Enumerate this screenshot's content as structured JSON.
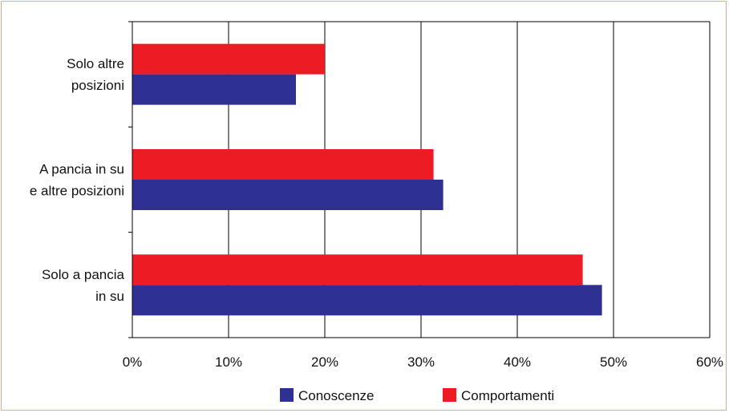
{
  "chart_data": {
    "type": "bar",
    "orientation": "horizontal",
    "categories": [
      [
        "Solo altre",
        "posizioni"
      ],
      [
        "A pancia in su",
        "e altre posizioni"
      ],
      [
        "Solo a pancia",
        "in su"
      ]
    ],
    "series": [
      {
        "name": "Conoscenze",
        "color": "#2e3192",
        "values": [
          17,
          32.3,
          48.8
        ]
      },
      {
        "name": "Comportamenti",
        "color": "#ed1c24",
        "values": [
          20,
          31.3,
          46.8
        ]
      }
    ],
    "xlim": [
      0,
      60
    ],
    "xticks": [
      "0%",
      "10%",
      "20%",
      "30%",
      "40%",
      "50%",
      "60%"
    ],
    "grid": true,
    "legend": "bottom"
  }
}
